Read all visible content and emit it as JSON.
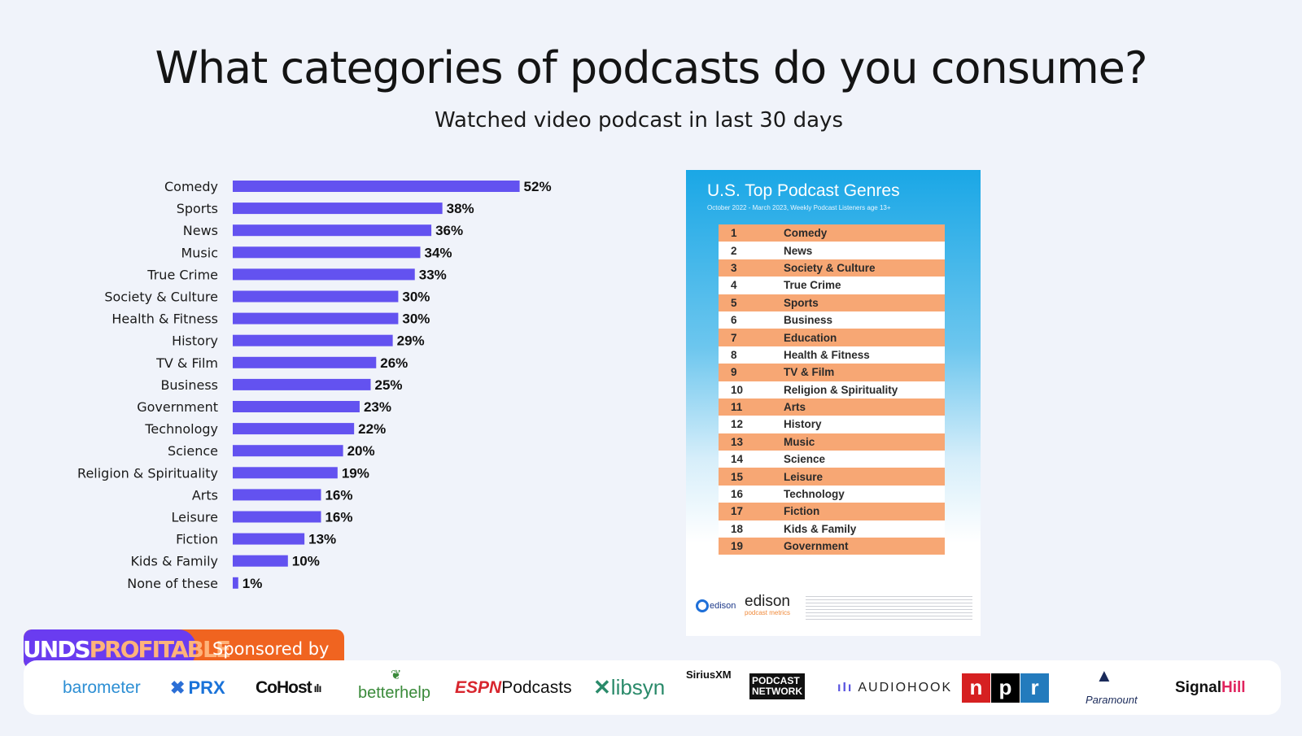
{
  "title": "What categories of podcasts do you consume?",
  "subtitle": "Watched video podcast in last 30 days",
  "chart_data": {
    "type": "bar",
    "orientation": "horizontal",
    "categories": [
      "Comedy",
      "Sports",
      "News",
      "Music",
      "True Crime",
      "Society & Culture",
      "Health & Fitness",
      "History",
      "TV & Film",
      "Business",
      "Government",
      "Technology",
      "Science",
      "Religion & Spirituality",
      "Arts",
      "Leisure",
      "Fiction",
      "Kids & Family",
      "None of these"
    ],
    "values": [
      52,
      38,
      36,
      34,
      33,
      30,
      30,
      29,
      26,
      25,
      23,
      22,
      20,
      19,
      16,
      16,
      13,
      10,
      1
    ],
    "value_labels": [
      "52%",
      "38%",
      "36%",
      "34%",
      "33%",
      "30%",
      "30%",
      "29%",
      "26%",
      "25%",
      "23%",
      "22%",
      "20%",
      "19%",
      "16%",
      "16%",
      "13%",
      "10%",
      "1%"
    ],
    "value_unit": "%",
    "bar_color": "#6352f0",
    "xlim": [
      0,
      60
    ],
    "grid": false,
    "legend": "none"
  },
  "inset": {
    "title": "U.S. Top Podcast Genres",
    "subtitle": "October 2022 - March 2023, Weekly Podcast Listeners age 13+",
    "rows": [
      {
        "rank": "1",
        "genre": "Comedy"
      },
      {
        "rank": "2",
        "genre": "News"
      },
      {
        "rank": "3",
        "genre": "Society & Culture"
      },
      {
        "rank": "4",
        "genre": "True Crime"
      },
      {
        "rank": "5",
        "genre": "Sports"
      },
      {
        "rank": "6",
        "genre": "Business"
      },
      {
        "rank": "7",
        "genre": "Education"
      },
      {
        "rank": "8",
        "genre": "Health & Fitness"
      },
      {
        "rank": "9",
        "genre": "TV & Film"
      },
      {
        "rank": "10",
        "genre": "Religion & Spirituality"
      },
      {
        "rank": "11",
        "genre": "Arts"
      },
      {
        "rank": "12",
        "genre": "History"
      },
      {
        "rank": "13",
        "genre": "Music"
      },
      {
        "rank": "14",
        "genre": "Science"
      },
      {
        "rank": "15",
        "genre": "Leisure"
      },
      {
        "rank": "16",
        "genre": "Technology"
      },
      {
        "rank": "17",
        "genre": "Fiction"
      },
      {
        "rank": "18",
        "genre": "Kids & Family"
      },
      {
        "rank": "19",
        "genre": "Government"
      }
    ],
    "logo_left": "edison",
    "logo_right": "edison",
    "logo_right_sub": "podcast metrics",
    "row_color_odd": "#f7a774",
    "row_color_even": "#ffffff"
  },
  "banner": {
    "logo_part1": "SOUNDS",
    "logo_part2": "PROFITABLE",
    "text": "Sponsored by"
  },
  "sponsors": {
    "barometer": "barometer",
    "prx": "PRX",
    "cohost": "CoHost",
    "betterhelp": "betterhelp",
    "espn_mark": "ESPN",
    "espn_text": "Podcasts",
    "libsyn": "libsyn",
    "sirius": "SiriusXM",
    "sirius_sub1": "PODCAST",
    "sirius_sub2": "NETWORK",
    "audiohook": "AUDIOHOOK",
    "npr": [
      "n",
      "p",
      "r"
    ],
    "npr_colors": [
      "#d62021",
      "#000000",
      "#237bbd"
    ],
    "paramount": "Paramount",
    "signal_main": "Signal",
    "signal_hill": "Hill"
  }
}
